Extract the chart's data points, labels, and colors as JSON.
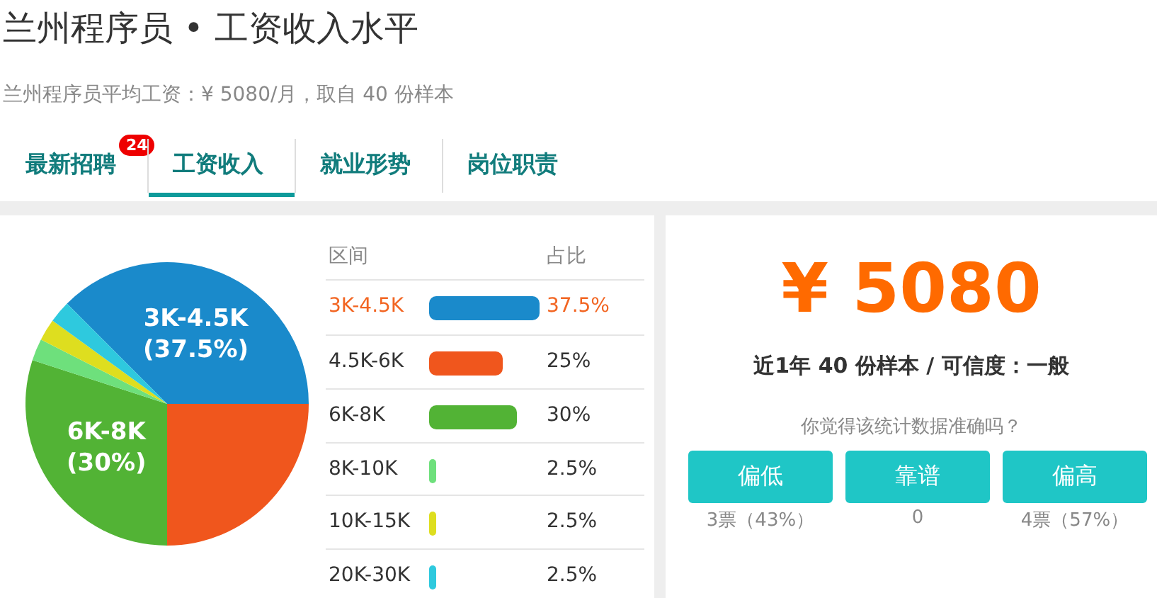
{
  "chart_data": {
    "type": "pie",
    "title": "兰州程序员 • 工资收入水平",
    "subtitle": "兰州程序员平均工资：¥ 5080/月，取自 40 份样本",
    "categories": [
      "3K-4.5K",
      "4.5K-6K",
      "6K-8K",
      "8K-10K",
      "10K-15K",
      "20K-30K"
    ],
    "values": [
      37.5,
      25,
      30,
      2.5,
      2.5,
      2.5
    ],
    "colors": [
      "#1a8acb",
      "#f0561d",
      "#52b335",
      "#6ee07c",
      "#dede1f",
      "#2ec9de"
    ],
    "legend": "right",
    "value_labels": [
      "3K-4.5K\n(37.5%)",
      null,
      "6K-8K\n(30%)",
      null,
      null,
      null
    ],
    "annotations": [
      "最新招聘",
      "24",
      "工资收入",
      "就业形势",
      "岗位职责",
      "区间",
      "占比",
      "37.5%",
      "25%",
      "30%",
      "2.5%",
      "2.5%",
      "2.5%",
      "¥ 5080",
      "近1年 40 份样本 / 可信度：一般",
      "你觉得该统计数据准确吗？",
      "偏低",
      "靠谱",
      "偏高",
      "3票（43%）",
      "0",
      "4票（57%）"
    ]
  }
}
